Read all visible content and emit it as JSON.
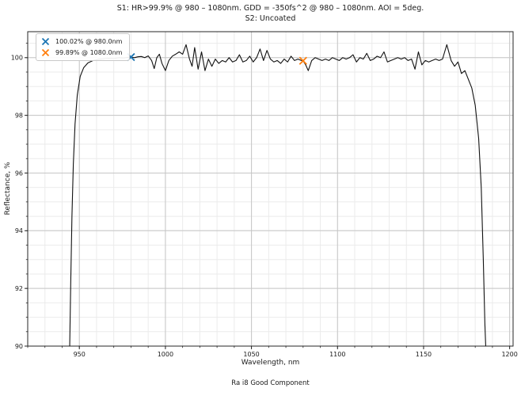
{
  "chart_data": {
    "type": "line",
    "title": "S1: HR>99.9% @ 980 – 1080nm. GDD = -350fs^2 @ 980 – 1080nm. AOI = 5deg.",
    "subtitle": "S2: Uncoated",
    "caption": "Ra i8 Good Component",
    "xlabel": "Wavelength, nm",
    "ylabel": "Reflectance, %",
    "xlim": [
      920,
      1202
    ],
    "ylim": [
      90,
      100.9
    ],
    "x_ticks": [
      950,
      1000,
      1050,
      1100,
      1150,
      1200
    ],
    "y_ticks": [
      90,
      92,
      94,
      96,
      98,
      100
    ],
    "x_minor_step": 10,
    "y_minor_step": 0.5,
    "grid": "major+minor",
    "legend_position": "upper-left",
    "line_color": "#111111",
    "major_grid_color": "#c6c6c6",
    "minor_grid_color": "#ebebeb",
    "series": [
      {
        "name": "S1 reflectance",
        "x": [
          944.4,
          945.0,
          945.7,
          946.5,
          947.5,
          948.8,
          950.5,
          952.5,
          955,
          958,
          961,
          964,
          967,
          970,
          973,
          976,
          978,
          980,
          982,
          984,
          986,
          988,
          990,
          992,
          993.5,
          995,
          996.5,
          998,
          1000,
          1002,
          1004,
          1006,
          1008,
          1010,
          1012,
          1014,
          1015.5,
          1017,
          1019,
          1021,
          1023,
          1025,
          1027,
          1029,
          1031,
          1033,
          1035,
          1037,
          1039,
          1041,
          1043,
          1045,
          1047,
          1049,
          1051,
          1053,
          1055,
          1057,
          1059,
          1061,
          1063,
          1065,
          1067,
          1069,
          1071,
          1073,
          1075,
          1077,
          1079,
          1080,
          1081.5,
          1083,
          1085,
          1087,
          1089,
          1091,
          1093,
          1095,
          1097,
          1099,
          1101,
          1103,
          1105,
          1107,
          1109,
          1111,
          1113,
          1115,
          1117,
          1119,
          1121,
          1123,
          1125,
          1127,
          1129,
          1131,
          1133,
          1135,
          1137,
          1139,
          1141,
          1143,
          1145,
          1147,
          1149,
          1151,
          1153,
          1155,
          1157,
          1159,
          1161,
          1163.5,
          1166,
          1168,
          1170,
          1172,
          1174,
          1176,
          1178,
          1180,
          1182,
          1183.5,
          1184.7,
          1185.6,
          1186.1
        ],
        "y": [
          90.0,
          92.2,
          94.5,
          96.3,
          97.7,
          98.7,
          99.35,
          99.65,
          99.82,
          99.9,
          99.94,
          99.96,
          99.98,
          99.97,
          100.0,
          99.99,
          100.01,
          100.02,
          100.0,
          100.03,
          100.04,
          100.0,
          100.06,
          99.9,
          99.62,
          100.0,
          100.12,
          99.8,
          99.55,
          99.9,
          100.05,
          100.12,
          100.2,
          100.12,
          100.45,
          99.95,
          99.7,
          100.35,
          99.6,
          100.2,
          99.55,
          99.95,
          99.7,
          99.95,
          99.8,
          99.9,
          99.85,
          100.0,
          99.85,
          99.9,
          100.1,
          99.85,
          99.9,
          100.05,
          99.85,
          100.0,
          100.3,
          99.9,
          100.25,
          99.95,
          99.85,
          99.9,
          99.8,
          99.95,
          99.85,
          100.05,
          99.9,
          99.95,
          99.9,
          99.89,
          99.75,
          99.55,
          99.9,
          100.0,
          99.95,
          99.9,
          99.95,
          99.9,
          100.0,
          99.95,
          99.9,
          100.0,
          99.95,
          100.0,
          100.1,
          99.85,
          100.0,
          99.95,
          100.15,
          99.9,
          99.95,
          100.05,
          100.0,
          100.2,
          99.85,
          99.9,
          99.95,
          100.0,
          99.95,
          100.0,
          99.9,
          99.95,
          99.6,
          100.2,
          99.75,
          99.9,
          99.85,
          99.9,
          99.95,
          99.9,
          99.95,
          100.45,
          99.9,
          99.7,
          99.85,
          99.45,
          99.55,
          99.25,
          98.95,
          98.35,
          97.2,
          95.5,
          93.0,
          90.8,
          90.0
        ]
      }
    ],
    "markers": [
      {
        "label": "100.02% @ 980.0nm",
        "x": 980.0,
        "y": 100.02,
        "color": "#1f77b4",
        "shape": "x"
      },
      {
        "label": "99.89% @ 1080.0nm",
        "x": 1080.0,
        "y": 99.89,
        "color": "#ff7f0e",
        "shape": "x"
      }
    ]
  }
}
